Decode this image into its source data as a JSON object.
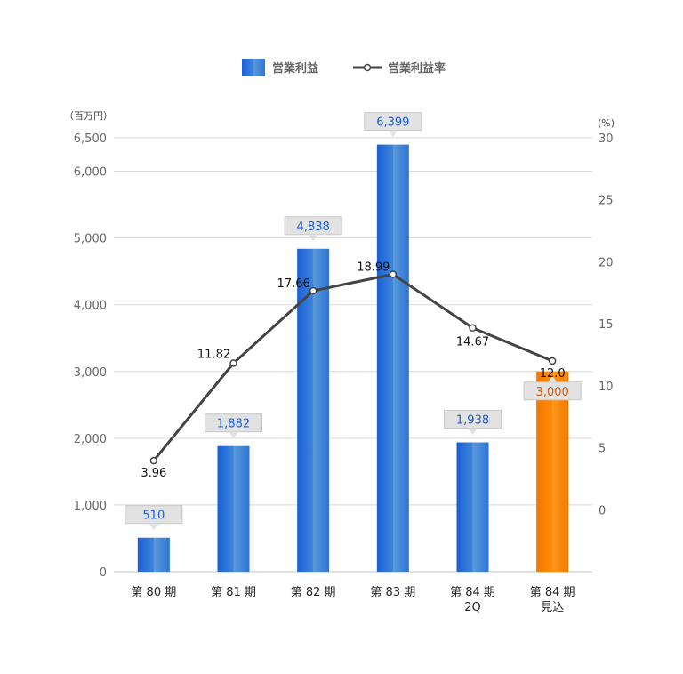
{
  "chart_data": {
    "type": "bar",
    "categories": [
      [
        "第 80 期"
      ],
      [
        "第 81 期"
      ],
      [
        "第 82 期"
      ],
      [
        "第 83 期"
      ],
      [
        "第 84 期",
        "2Q"
      ],
      [
        "第 84 期",
        "見込"
      ]
    ],
    "series": [
      {
        "name": "営業利益",
        "type": "bar",
        "axis": "left",
        "values": [
          510,
          1882,
          4838,
          6399,
          1938,
          3000
        ],
        "labels": [
          "510",
          "1,882",
          "4,838",
          "6,399",
          "1,938",
          "3,000"
        ],
        "forecast_index": 5
      },
      {
        "name": "営業利益率",
        "type": "line",
        "axis": "right",
        "values": [
          3.96,
          11.82,
          17.66,
          18.99,
          14.67,
          12.0
        ],
        "labels": [
          "3.96",
          "11.82",
          "17.66",
          "18.99",
          "14.67",
          "12.0"
        ]
      }
    ],
    "y_left": {
      "unit": "（百万円）",
      "ticks": [
        0,
        1000,
        2000,
        3000,
        4000,
        5000,
        6000,
        6500
      ],
      "tick_labels": [
        "0",
        "1,000",
        "2,000",
        "3,000",
        "4,000",
        "5,000",
        "6,000",
        "6,500"
      ],
      "ylim": [
        0,
        6500
      ]
    },
    "y_right": {
      "unit": "(%)",
      "ticks": [
        0,
        5,
        10,
        15,
        20,
        25,
        30
      ],
      "tick_labels": [
        "0",
        "5",
        "10",
        "15",
        "20",
        "25",
        "30"
      ],
      "ylim": [
        -5,
        30
      ]
    },
    "grid": true,
    "legend_position": "top-center",
    "colors": {
      "bar_dark": "#1a5fd6",
      "bar_light": "#5b9bd8",
      "bar_forecast_dark": "#f07800",
      "bar_forecast_light": "#ff9a1a",
      "bar_label_blue": "#1a5fd6",
      "bar_label_orange": "#e05a00",
      "line": "#444444",
      "grid": "#d8d8d8",
      "callout_bg": "#e2e2e2"
    }
  }
}
